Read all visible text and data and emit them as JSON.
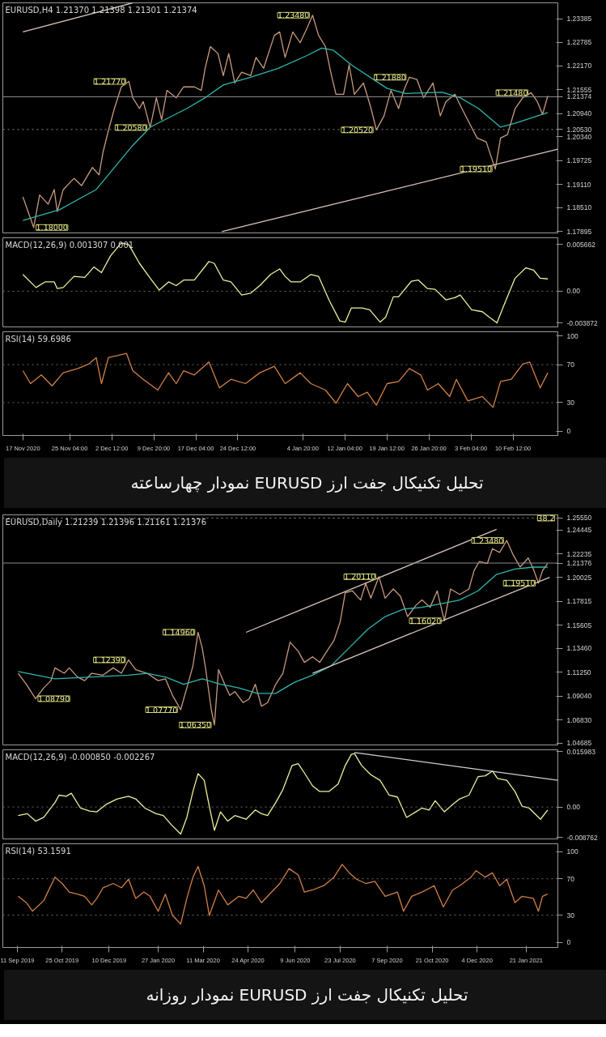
{
  "chart_data": [
    {
      "type": "line",
      "title": "EURUSD,H4  1.21370 1.21398 1.21301 1.21374",
      "tick_labels": "y",
      "xlim": [
        "2020-11-13T12:00",
        "2021-02-18T08:00"
      ],
      "ylim": [
        1.1786,
        1.238
      ],
      "yticks": [
        {
          "value": 1.17895,
          "label": "1.17895"
        },
        {
          "value": 1.1851,
          "label": "1.18510"
        },
        {
          "value": 1.1911,
          "label": "1.19110"
        },
        {
          "value": 1.19725,
          "label": "1.19725"
        },
        {
          "value": 1.2034,
          "label": "1.20340"
        },
        {
          "value": 1.2053,
          "label": "1.20530"
        },
        {
          "value": 1.2094,
          "label": "1.20940"
        },
        {
          "value": 1.21374,
          "label": "1.21374"
        },
        {
          "value": 1.21555,
          "label": "1.21555"
        },
        {
          "value": 1.2217,
          "label": "1.22170"
        },
        {
          "value": 1.22785,
          "label": "1.22785"
        },
        {
          "value": 1.23385,
          "label": "1.23385"
        }
      ],
      "series": [
        {
          "color": "#c79a7e",
          "x": [
            "2020-11-17T00:00",
            "2020-11-18T21:00",
            "2020-11-19T22:00",
            "2020-11-21T10:00",
            "2020-11-22T11:00",
            "2020-11-23T00:00",
            "2020-11-24T01:00",
            "2020-11-25T22:00",
            "2020-11-27T06:00",
            "2020-11-29T03:00",
            "2020-11-30T07:00",
            "2020-11-30T23:00",
            "2020-12-01T22:00",
            "2020-12-02T23:00",
            "2020-12-04T04:00",
            "2020-12-05T12:00",
            "2020-12-06T04:00",
            "2020-12-07T08:00",
            "2020-12-08T00:00",
            "2020-12-09T05:00",
            "2020-12-10T07:00",
            "2020-12-11T05:00",
            "2020-12-12T03:00",
            "2020-12-13T18:00",
            "2020-12-15T01:00",
            "2020-12-16T22:00",
            "2020-12-18T03:00",
            "2020-12-18T19:00",
            "2020-12-19T17:00",
            "2020-12-21T01:00",
            "2020-12-21T23:00",
            "2020-12-22T22:00",
            "2020-12-23T23:00",
            "2020-12-25T04:00",
            "2020-12-26T18:00",
            "2020-12-27T16:00",
            "2020-12-29T00:00",
            "2020-12-30T21:00",
            "2020-12-31T19:00",
            "2021-01-01T18:00",
            "2021-01-03T02:00",
            "2021-01-04T09:00",
            "2021-01-05T14:00",
            "2021-01-06T13:00",
            "2021-01-07T14:00",
            "2021-01-08T19:00",
            "2021-01-09T17:00",
            "2021-01-10T15:00",
            "2021-01-11T23:00",
            "2021-01-12T22:00",
            "2021-01-13T20:00",
            "2021-01-15T10:00",
            "2021-01-16T18:00",
            "2021-01-17T16:00",
            "2021-01-19T00:00",
            "2021-01-20T05:00",
            "2021-01-21T13:00",
            "2021-01-22T11:00",
            "2021-01-23T10:00",
            "2021-01-24T18:00",
            "2021-01-25T22:00",
            "2021-01-27T13:00",
            "2021-01-28T20:00",
            "2021-01-29T19:00",
            "2021-01-31T09:00",
            "2021-02-01T07:00",
            "2021-02-02T22:00",
            "2021-02-04T06:00",
            "2021-02-05T20:00",
            "2021-02-07T10:00",
            "2021-02-08T08:00",
            "2021-02-09T13:00",
            "2021-02-10T21:00",
            "2021-02-12T05:00",
            "2021-02-13T16:00",
            "2021-02-14T18:00",
            "2021-02-15T16:00",
            "2021-02-16T14:00"
          ],
          "values": [
            1.1879,
            1.18,
            1.1884,
            1.186,
            1.1898,
            1.1841,
            1.1898,
            1.1927,
            1.1908,
            1.1955,
            1.1936,
            1.1993,
            1.205,
            1.2107,
            1.2163,
            1.2177,
            1.2135,
            1.2107,
            1.2125,
            1.2058,
            1.2135,
            1.2078,
            1.2154,
            1.2135,
            1.2163,
            1.2163,
            1.2154,
            1.2211,
            1.2267,
            1.2249,
            1.2192,
            1.2249,
            1.2173,
            1.2201,
            1.2192,
            1.2239,
            1.2211,
            1.2296,
            1.2305,
            1.2239,
            1.2305,
            1.2277,
            1.2315,
            1.2348,
            1.2296,
            1.2267,
            1.2201,
            1.2144,
            1.2144,
            1.222,
            1.2144,
            1.2173,
            1.2107,
            1.2052,
            1.2088,
            1.2154,
            1.2107,
            1.2154,
            1.2188,
            1.2182,
            1.2135,
            1.2173,
            1.2088,
            1.2125,
            1.2144,
            1.2116,
            1.2069,
            1.2031,
            1.2021,
            1.1951,
            1.2031,
            1.204,
            1.2107,
            1.2135,
            1.2148,
            1.2125,
            1.2092,
            1.214
          ]
        },
        {
          "color": "#2fb5ad",
          "x": [
            "2020-11-17T00:00",
            "2020-11-23T09:00",
            "2020-11-29T19:00",
            "2020-12-06T04:00",
            "2020-12-09T05:00",
            "2020-12-15T14:00",
            "2020-12-18T19:00",
            "2020-12-21T23:00",
            "2020-12-26T12:00",
            "2020-12-31T13:00",
            "2021-01-05T14:00",
            "2021-01-08T03:00",
            "2021-01-10T03:00",
            "2021-01-13T07:00",
            "2021-01-19T13:00",
            "2021-01-22T18:00",
            "2021-01-29T03:00",
            "2021-02-01T07:00",
            "2021-02-04T12:00",
            "2021-02-08T08:00",
            "2021-02-10T21:00",
            "2021-02-16T14:00"
          ],
          "values": [
            1.1818,
            1.1846,
            1.1898,
            1.2012,
            1.2059,
            1.2107,
            1.2135,
            1.2168,
            1.2187,
            1.2211,
            1.2244,
            1.2263,
            1.2258,
            1.222,
            1.2159,
            1.2146,
            1.2149,
            1.2135,
            1.2107,
            1.2059,
            1.2069,
            1.2097
          ]
        },
        {
          "color": "#d9c3b9",
          "x": [
            "2020-11-17T00:00",
            "2020-12-06T04:00"
          ],
          "values": [
            1.2305,
            1.238
          ]
        },
        {
          "color": "#d9c3b9",
          "x": [
            "2020-12-21T17:00",
            "2021-02-18T08:00"
          ],
          "values": [
            1.17895,
            1.2002
          ]
        }
      ],
      "ref_lines": [
        {
          "axis": "y",
          "value": 1.21374,
          "color": "#8a8a8a",
          "line_style": "solid"
        },
        {
          "axis": "y",
          "value": 1.2053,
          "color": "#8a8a8a",
          "line_style": "dotted"
        }
      ],
      "annotations": [
        {
          "text": "1.23480",
          "x": "2021-01-06T13:00",
          "y": 1.2348
        },
        {
          "text": "1.21770",
          "x": "2020-12-05T12:00",
          "y": 1.2177
        },
        {
          "text": "1.20580",
          "x": "2020-12-09T05:00",
          "y": 1.2058
        },
        {
          "text": "1.20520",
          "x": "2021-01-17T16:00",
          "y": 1.2052
        },
        {
          "text": "1.21880",
          "x": "2021-01-23T10:00",
          "y": 1.2188
        },
        {
          "text": "1.19510",
          "x": "2021-02-07T10:00",
          "y": 1.1951
        },
        {
          "text": "1.21480",
          "x": "2021-02-13T16:00",
          "y": 1.2148
        },
        {
          "text": "1.18000",
          "x": "2020-11-18T21:00",
          "y": 1.18
        }
      ]
    },
    {
      "type": "line",
      "title": "MACD(12,26,9) 0.001307 0.001",
      "tick_labels": "y",
      "xlim": [
        "2020-11-13T12:00",
        "2021-02-18T08:00"
      ],
      "ylim": [
        -0.00432,
        0.00647
      ],
      "yticks": [
        {
          "value": -0.003872,
          "label": "-0.003872"
        },
        {
          "value": 0,
          "label": "0.00"
        },
        {
          "value": 0.005662,
          "label": "0.005662"
        }
      ],
      "series": [
        {
          "color": "#f0ef9c",
          "x": [
            "2020-11-17T00:00",
            "2020-11-19T07:00",
            "2020-11-20T21:00",
            "2020-11-22T11:00",
            "2020-11-23T00:00",
            "2020-11-24T01:00",
            "2020-11-25T22:00",
            "2020-11-27T19:00",
            "2020-11-29T09:00",
            "2020-11-30T17:00",
            "2020-12-02T07:00",
            "2020-12-04T04:00",
            "2020-12-05T12:00",
            "2020-12-07T08:00",
            "2020-12-09T05:00",
            "2020-12-10T19:00",
            "2020-12-12T10:00",
            "2020-12-13T18:00",
            "2020-12-15T01:00",
            "2020-12-16T22:00",
            "2020-12-19T11:00",
            "2020-12-20T09:00",
            "2020-12-21T23:00",
            "2020-12-23T07:00",
            "2020-12-25T04:00",
            "2020-12-26T18:00",
            "2020-12-28T08:00",
            "2020-12-30T05:00",
            "2020-12-31T19:00",
            "2021-01-01T18:00",
            "2021-01-02T19:00",
            "2021-01-04T09:00",
            "2021-01-06T06:00",
            "2021-01-07T14:00",
            "2021-01-09T11:00",
            "2021-01-11T07:00",
            "2021-01-12T06:00",
            "2021-01-13T07:00",
            "2021-01-15T04:00",
            "2021-01-16T12:00",
            "2021-01-18T08:00",
            "2021-01-19T07:00",
            "2021-01-20T15:00",
            "2021-01-21T13:00",
            "2021-01-23T19:00",
            "2021-01-25T00:00",
            "2021-01-26T14:00",
            "2021-01-27T22:00",
            "2021-01-29T19:00",
            "2021-01-31T09:00",
            "2021-02-01T07:00",
            "2021-02-03T07:00",
            "2021-02-05T04:00",
            "2021-02-06T09:00",
            "2021-02-07T17:00",
            "2021-02-09T00:00",
            "2021-02-10T21:00",
            "2021-02-12T18:00",
            "2021-02-14T02:00",
            "2021-02-15T06:00",
            "2021-02-16T14:00"
          ],
          "values": [
            0.00203,
            0.00045,
            0.00113,
            0.00113,
            0.00032,
            0.00045,
            0.0018,
            0.00167,
            0.00293,
            0.00225,
            0.00428,
            0.00585,
            0.00563,
            0.00338,
            0.00158,
            0.00014,
            0.00113,
            0.00068,
            0.00135,
            0.00135,
            0.0036,
            0.00338,
            0.00135,
            0.00113,
            -0.00045,
            -0.00023,
            0.00068,
            0.00203,
            0.0027,
            0.0018,
            0.00113,
            0.00113,
            0.00203,
            0.0018,
            -0.00113,
            -0.0036,
            -0.00374,
            -0.00203,
            -0.00203,
            -0.00225,
            -0.00374,
            -0.00315,
            -0.00068,
            -0.00068,
            0.00122,
            0.00135,
            0.00032,
            0.00023,
            -0.00104,
            -0.00077,
            -0.00045,
            -0.00225,
            -0.00248,
            -0.00315,
            -0.00383,
            -0.00158,
            0.00158,
            0.00284,
            0.00257,
            0.00158,
            0.00149
          ]
        }
      ],
      "ref_lines": [
        {
          "axis": "y",
          "value": 0,
          "color": "#6a6a6a",
          "line_style": "dotted"
        }
      ]
    },
    {
      "type": "line",
      "title": "RSI(14) 59.6986",
      "xlim": [
        "2020-11-13T12:00",
        "2021-02-18T08:00"
      ],
      "ylim": [
        -4.5,
        104.5
      ],
      "yticks": [
        0,
        30,
        70,
        100
      ],
      "xticks": [
        {
          "value": "2020-11-17T00:00",
          "label": "17 Nov 2020"
        },
        {
          "value": "2020-11-25T04:00",
          "label": "25 Nov 04:00"
        },
        {
          "value": "2020-12-02T12:00",
          "label": "2 Dec 12:00"
        },
        {
          "value": "2020-12-09T20:00",
          "label": "9 Dec 20:00"
        },
        {
          "value": "2020-12-17T04:00",
          "label": "17 Dec 04:00"
        },
        {
          "value": "2020-12-24T12:00",
          "label": "24 Dec 12:00"
        },
        {
          "value": "2021-01-04T20:00",
          "label": "4 Jan 20:00"
        },
        {
          "value": "2021-01-12T04:00",
          "label": "12 Jan 04:00"
        },
        {
          "value": "2021-01-19T12:00",
          "label": "19 Jan 12:00"
        },
        {
          "value": "2021-01-26T20:00",
          "label": "26 Jan 20:00"
        },
        {
          "value": "2021-02-03T04:00",
          "label": "3 Feb 04:00"
        },
        {
          "value": "2021-02-10T12:00",
          "label": "10 Feb 12:00"
        }
      ],
      "series": [
        {
          "color": "#d08045",
          "x": [
            "2020-11-17T00:00",
            "2020-11-18T08:00",
            "2020-11-20T05:00",
            "2020-11-22T02:00",
            "2020-11-24T01:00",
            "2020-11-26T14:00",
            "2020-11-28T11:00",
            "2020-11-29T19:00",
            "2020-11-30T17:00",
            "2020-12-01T22:00",
            "2020-12-03T12:00",
            "2020-12-05T02:00",
            "2020-12-06T04:00",
            "2020-12-08T00:00",
            "2020-12-10T13:00",
            "2020-12-12T10:00",
            "2020-12-13T18:00",
            "2020-12-15T01:00",
            "2020-12-16T22:00",
            "2020-12-19T11:00",
            "2020-12-21T07:00",
            "2020-12-23T07:00",
            "2020-12-25T20:00",
            "2020-12-28T08:00",
            "2020-12-30T21:00",
            "2021-01-01T18:00",
            "2021-01-04T09:00",
            "2021-01-06T06:00",
            "2021-01-08T19:00",
            "2021-01-10T15:00",
            "2021-01-12T15:00",
            "2021-01-14T12:00",
            "2021-01-16T02:00",
            "2021-01-17T16:00",
            "2021-01-19T13:00",
            "2021-01-21T13:00",
            "2021-01-23T10:00",
            "2021-01-25T10:00",
            "2021-01-26T14:00",
            "2021-01-28T11:00",
            "2021-01-30T11:00",
            "2021-01-31T15:00",
            "2021-02-02T15:00",
            "2021-02-05T04:00",
            "2021-02-07T01:00",
            "2021-02-08T08:00",
            "2021-02-10T05:00",
            "2021-02-12T05:00",
            "2021-02-13T10:00",
            "2021-02-15T06:00",
            "2021-02-16T14:00"
          ],
          "values": [
            63.6,
            50.0,
            59.1,
            47.7,
            61.4,
            65.9,
            70.5,
            77.3,
            50.0,
            77.3,
            79.5,
            81.8,
            63.6,
            54.5,
            43.2,
            61.4,
            50.0,
            63.6,
            59.1,
            72.7,
            45.5,
            54.5,
            50.0,
            61.4,
            68.2,
            50.0,
            61.4,
            50.0,
            43.2,
            29.5,
            50.0,
            36.4,
            40.9,
            27.3,
            50.0,
            52.3,
            65.9,
            59.1,
            43.2,
            50.0,
            36.4,
            54.5,
            31.8,
            36.4,
            25.0,
            52.3,
            54.5,
            70.5,
            72.7,
            45.5,
            61.4
          ]
        }
      ],
      "ref_lines": [
        {
          "axis": "y",
          "value": 30,
          "color": "#6a6a6a",
          "line_style": "dotted"
        },
        {
          "axis": "y",
          "value": 70,
          "color": "#6a6a6a",
          "line_style": "dotted"
        }
      ],
      "annotations": [
        "تحلیل تکنیکال جفت ارز EURUSD نمودار چهارساعته"
      ]
    },
    {
      "type": "line",
      "title": "EURUSD,Daily  1.21239 1.21396 1.21161 1.21376",
      "tick_labels": "y",
      "xlim": [
        "2019-08-28",
        "2021-02-21"
      ],
      "ylim": [
        1.045,
        1.2585
      ],
      "yticks": [
        {
          "value": 1.04685,
          "label": "1.04685"
        },
        {
          "value": 1.0683,
          "label": "1.06830"
        },
        {
          "value": 1.0904,
          "label": "1.09040"
        },
        {
          "value": 1.1125,
          "label": "1.11250"
        },
        {
          "value": 1.1346,
          "label": "1.13460"
        },
        {
          "value": 1.15605,
          "label": "1.15605"
        },
        {
          "value": 1.17815,
          "label": "1.17815"
        },
        {
          "value": 1.20025,
          "label": "1.20025"
        },
        {
          "value": 1.21376,
          "label": "1.21376"
        },
        {
          "value": 1.22235,
          "label": "1.22235"
        },
        {
          "value": 1.24445,
          "label": "1.24445"
        },
        {
          "value": 1.2555,
          "label": "1.25550"
        }
      ],
      "series": [
        {
          "color": "#c79a7e",
          "x": [
            "2019-09-12",
            "2019-09-20",
            "2019-09-29",
            "2019-10-07",
            "2019-10-14",
            "2019-10-18",
            "2019-10-27",
            "2019-11-01",
            "2019-11-09",
            "2019-11-16",
            "2019-11-23",
            "2019-12-04",
            "2019-12-14",
            "2019-12-22",
            "2019-12-29",
            "2020-01-05",
            "2020-01-16",
            "2020-01-27",
            "2020-02-03",
            "2020-02-10",
            "2020-02-18",
            "2020-02-24",
            "2020-03-01",
            "2020-03-06",
            "2020-03-10",
            "2020-03-13",
            "2020-03-19",
            "2020-03-22",
            "2020-03-26",
            "2020-04-01",
            "2020-04-06",
            "2020-04-11",
            "2020-04-19",
            "2020-04-25",
            "2020-05-01",
            "2020-05-07",
            "2020-05-13",
            "2020-05-21",
            "2020-05-28",
            "2020-06-04",
            "2020-06-12",
            "2020-06-18",
            "2020-06-26",
            "2020-07-03",
            "2020-07-10",
            "2020-07-17",
            "2020-07-23",
            "2020-07-28",
            "2020-08-04",
            "2020-08-12",
            "2020-08-17",
            "2020-08-22",
            "2020-08-30",
            "2020-09-05",
            "2020-09-13",
            "2020-09-20",
            "2020-09-27",
            "2020-10-05",
            "2020-10-11",
            "2020-10-19",
            "2020-10-26",
            "2020-11-02",
            "2020-11-08",
            "2020-11-17",
            "2020-11-26",
            "2020-12-01",
            "2020-12-06",
            "2020-12-14",
            "2020-12-19",
            "2020-12-26",
            "2021-01-02",
            "2021-01-08",
            "2021-01-15",
            "2021-01-23",
            "2021-01-28",
            "2021-02-02",
            "2021-02-06",
            "2021-02-11"
          ],
          "values": [
            1.1115,
            1.1013,
            1.0879,
            1.0979,
            1.1047,
            1.1165,
            1.1115,
            1.1165,
            1.1081,
            1.1047,
            1.1115,
            1.1098,
            1.1165,
            1.1115,
            1.1239,
            1.1149,
            1.1115,
            1.1047,
            1.1064,
            1.091,
            1.0777,
            1.0979,
            1.1183,
            1.1496,
            1.1353,
            1.1183,
            1.0775,
            1.0635,
            1.1149,
            1.1013,
            1.091,
            1.0945,
            1.0843,
            1.0877,
            1.1013,
            1.0809,
            1.0843,
            1.1013,
            1.1115,
            1.1404,
            1.1319,
            1.1216,
            1.1268,
            1.1216,
            1.1319,
            1.1421,
            1.1591,
            1.1863,
            1.188,
            1.1795,
            1.1948,
            1.1812,
            1.2011,
            1.1812,
            1.1897,
            1.1829,
            1.1641,
            1.1744,
            1.1795,
            1.1727,
            1.188,
            1.1602,
            1.1897,
            1.1846,
            1.1897,
            1.2067,
            1.2151,
            1.2134,
            1.2271,
            1.2236,
            1.2348,
            1.2219,
            1.21,
            1.2185,
            1.2083,
            1.1951,
            1.2067,
            1.2134
          ]
        },
        {
          "color": "#2fb5ad",
          "x": [
            "2019-09-12",
            "2019-10-18",
            "2019-11-23",
            "2019-12-29",
            "2020-01-16",
            "2020-02-03",
            "2020-02-21",
            "2020-03-10",
            "2020-03-28",
            "2020-04-15",
            "2020-05-03",
            "2020-05-21",
            "2020-06-08",
            "2020-06-26",
            "2020-07-14",
            "2020-08-01",
            "2020-08-19",
            "2020-09-05",
            "2020-09-23",
            "2020-10-11",
            "2020-10-30",
            "2020-11-17",
            "2020-12-05",
            "2020-12-23",
            "2021-01-10",
            "2021-01-28",
            "2021-02-11"
          ],
          "values": [
            1.1131,
            1.1064,
            1.1081,
            1.1098,
            1.1115,
            1.1081,
            1.1013,
            1.1064,
            1.1013,
            1.0979,
            1.0928,
            1.0928,
            1.103,
            1.1098,
            1.1183,
            1.1353,
            1.1523,
            1.1641,
            1.171,
            1.1727,
            1.1761,
            1.1795,
            1.188,
            1.2032,
            1.2083,
            1.21,
            1.21
          ]
        },
        {
          "color": "#d9c3b9",
          "x": [
            "2020-04-22",
            "2020-12-23"
          ],
          "values": [
            1.1495,
            1.2451
          ]
        },
        {
          "color": "#d9c3b9",
          "x": [
            "2020-06-26",
            "2021-02-13"
          ],
          "values": [
            1.1115,
            1.2005
          ]
        }
      ],
      "ref_lines": [
        {
          "axis": "y",
          "value": 1.21376,
          "color": "#8a8a8a",
          "line_style": "solid"
        },
        {
          "axis": "y",
          "value": 1.2555,
          "color": "#8a8a8a",
          "line_style": "dotted"
        }
      ],
      "annotations": [
        {
          "text": "1.23480",
          "x": "2021-01-02",
          "y": 1.2348
        },
        {
          "text": "1.20110",
          "x": "2020-08-30",
          "y": 1.2011
        },
        {
          "text": "1.16020",
          "x": "2020-11-02",
          "y": 1.1602
        },
        {
          "text": "1.19510",
          "x": "2021-02-02",
          "y": 1.1951
        },
        {
          "text": "1.14960",
          "x": "2020-03-06",
          "y": 1.1496
        },
        {
          "text": "1.12390",
          "x": "2019-12-29",
          "y": 1.1239
        },
        {
          "text": "1.07770",
          "x": "2020-02-18",
          "y": 1.0777
        },
        {
          "text": "1.06350",
          "x": "2020-03-22",
          "y": 1.0635
        },
        {
          "text": "1.08790",
          "x": "2019-09-29",
          "y": 1.0879
        },
        {
          "text": "38.2",
          "x": "2021-02-21",
          "y": 1.2555
        }
      ]
    },
    {
      "type": "line",
      "title": "MACD(12,26,9) -0.000850 -0.002267",
      "tick_labels": "y",
      "xlim": [
        "2019-08-28",
        "2021-02-21"
      ],
      "ylim": [
        -0.0092,
        0.0165
      ],
      "yticks": [
        {
          "value": -0.008762,
          "label": "-0.008762"
        },
        {
          "value": 0,
          "label": "0.00"
        },
        {
          "value": 0.015983,
          "label": "0.015983"
        }
      ],
      "series": [
        {
          "color": "#f0ef9c",
          "x": [
            "2019-09-12",
            "2019-09-21",
            "2019-09-29",
            "2019-10-07",
            "2019-10-18",
            "2019-10-22",
            "2019-10-29",
            "2019-11-03",
            "2019-11-12",
            "2019-11-21",
            "2019-11-28",
            "2019-12-07",
            "2019-12-18",
            "2019-12-29",
            "2020-01-05",
            "2020-01-14",
            "2020-01-25",
            "2020-02-01",
            "2020-02-09",
            "2020-02-18",
            "2020-02-24",
            "2020-03-01",
            "2020-03-06",
            "2020-03-12",
            "2020-03-17",
            "2020-03-22",
            "2020-03-28",
            "2020-04-04",
            "2020-04-11",
            "2020-04-22",
            "2020-05-01",
            "2020-05-07",
            "2020-05-13",
            "2020-05-21",
            "2020-05-28",
            "2020-06-06",
            "2020-06-12",
            "2020-06-18",
            "2020-06-26",
            "2020-07-03",
            "2020-07-12",
            "2020-07-21",
            "2020-07-28",
            "2020-08-03",
            "2020-08-06",
            "2020-08-13",
            "2020-08-22",
            "2020-08-31",
            "2020-09-09",
            "2020-09-17",
            "2020-09-26",
            "2020-10-05",
            "2020-10-11",
            "2020-10-18",
            "2020-10-24",
            "2020-11-02",
            "2020-11-10",
            "2020-11-17",
            "2020-11-26",
            "2020-12-05",
            "2020-12-12",
            "2020-12-19",
            "2020-12-24",
            "2021-01-02",
            "2021-01-10",
            "2021-01-17",
            "2021-01-24",
            "2021-02-04",
            "2021-02-11"
          ],
          "values": [
            -0.00246,
            -0.00193,
            -0.00407,
            -0.003,
            0.00128,
            0.00342,
            0.0031,
            0.00396,
            -0.00032,
            -0.00118,
            -0.00139,
            0.00075,
            0.00235,
            0.0031,
            0.00235,
            -0.00032,
            -0.00193,
            -0.00246,
            -0.00514,
            -0.00781,
            -0.003,
            0.00449,
            0.00963,
            0.0077,
            0.00021,
            -0.00674,
            -0.00139,
            -0.00407,
            -0.00246,
            -0.00353,
            -0.00086,
            -0.00193,
            -0.00246,
            0.00128,
            0.00503,
            0.01198,
            0.01252,
            0.00984,
            0.0061,
            0.00449,
            0.00449,
            0.00663,
            0.01198,
            0.01519,
            0.01541,
            0.01198,
            0.00931,
            0.0077,
            0.00342,
            0.00289,
            -0.003,
            -0.00139,
            -0.00032,
            -0.00086,
            0.00182,
            -0.00139,
            0.00075,
            0.00235,
            0.00342,
            0.00877,
            0.00899,
            0.01038,
            0.00824,
            0.0077,
            0.00449,
            0.00021,
            -0.00032,
            -0.00353,
            -0.00086
          ]
        },
        {
          "color": "#cfcfcf",
          "x": [
            "2020-08-06",
            "2021-02-21"
          ],
          "values": [
            0.01573,
            0.0077
          ]
        }
      ],
      "ref_lines": [
        {
          "axis": "y",
          "value": 0,
          "color": "#6a6a6a",
          "line_style": "dotted"
        }
      ]
    },
    {
      "type": "line",
      "title": "RSI(14) 53.1591",
      "xlim": [
        "2019-08-28",
        "2021-02-21"
      ],
      "ylim": [
        -5.6,
        108.5
      ],
      "yticks": [
        0,
        30,
        70,
        100
      ],
      "xticks": [
        {
          "value": "2019-09-11",
          "label": "11 Sep 2019"
        },
        {
          "value": "2019-10-25",
          "label": "25 Oct 2019"
        },
        {
          "value": "2019-12-10",
          "label": "10 Dec 2019"
        },
        {
          "value": "2020-01-27",
          "label": "27 Jan 2020"
        },
        {
          "value": "2020-03-11",
          "label": "11 Mar 2020"
        },
        {
          "value": "2020-04-24",
          "label": "24 Apr 2020"
        },
        {
          "value": "2020-06-09",
          "label": "9 Jun 2020"
        },
        {
          "value": "2020-07-23",
          "label": "23 Jul 2020"
        },
        {
          "value": "2020-09-07",
          "label": "7 Sep 2020"
        },
        {
          "value": "2020-10-21",
          "label": "21 Oct 2020"
        },
        {
          "value": "2020-12-04",
          "label": "4 Dec 2020"
        },
        {
          "value": "2021-01-21",
          "label": "21 Jan 2021"
        }
      ],
      "series": [
        {
          "color": "#d08045",
          "x": [
            "2019-09-12",
            "2019-09-20",
            "2019-09-26",
            "2019-10-07",
            "2019-10-18",
            "2019-10-25",
            "2019-11-01",
            "2019-11-09",
            "2019-11-16",
            "2019-11-23",
            "2019-11-28",
            "2019-12-04",
            "2019-12-14",
            "2019-12-22",
            "2019-12-29",
            "2020-01-05",
            "2020-01-13",
            "2020-01-19",
            "2020-01-27",
            "2020-02-03",
            "2020-02-10",
            "2020-02-18",
            "2020-02-24",
            "2020-03-01",
            "2020-03-06",
            "2020-03-12",
            "2020-03-17",
            "2020-03-26",
            "2020-04-04",
            "2020-04-15",
            "2020-04-22",
            "2020-04-29",
            "2020-05-07",
            "2020-05-17",
            "2020-05-25",
            "2020-06-03",
            "2020-06-12",
            "2020-06-18",
            "2020-06-26",
            "2020-07-07",
            "2020-07-17",
            "2020-07-25",
            "2020-08-01",
            "2020-08-08",
            "2020-08-17",
            "2020-08-26",
            "2020-09-05",
            "2020-09-17",
            "2020-09-23",
            "2020-10-01",
            "2020-10-11",
            "2020-10-23",
            "2020-11-01",
            "2020-11-10",
            "2020-11-17",
            "2020-11-28",
            "2020-12-03",
            "2020-12-12",
            "2020-12-19",
            "2020-12-26",
            "2021-01-02",
            "2021-01-10",
            "2021-01-17",
            "2021-01-28",
            "2021-02-02",
            "2021-02-06",
            "2021-02-11"
          ],
          "values": [
            50.7,
            43.7,
            34.3,
            46.0,
            71.8,
            64.8,
            55.4,
            53.1,
            50.7,
            41.3,
            48.4,
            60.1,
            64.8,
            60.1,
            69.5,
            48.4,
            55.4,
            50.7,
            34.3,
            53.1,
            29.6,
            20.2,
            48.4,
            71.8,
            83.6,
            62.4,
            29.6,
            57.7,
            41.3,
            50.7,
            48.4,
            57.7,
            43.7,
            55.4,
            64.8,
            81.2,
            74.2,
            55.4,
            57.7,
            62.4,
            71.8,
            85.9,
            76.5,
            69.5,
            64.8,
            67.1,
            50.7,
            55.4,
            34.3,
            50.7,
            55.4,
            62.4,
            39.0,
            57.7,
            62.4,
            71.8,
            78.9,
            71.8,
            76.5,
            62.4,
            69.5,
            43.7,
            50.7,
            48.4,
            34.3,
            50.7,
            53.1
          ]
        }
      ],
      "ref_lines": [
        {
          "axis": "y",
          "value": 30,
          "color": "#6a6a6a",
          "line_style": "dotted"
        },
        {
          "axis": "y",
          "value": 70,
          "color": "#6a6a6a",
          "line_style": "dotted"
        }
      ],
      "annotations": [
        "تحلیل تکنیکال جفت ارز EURUSD نمودار روزانه"
      ]
    }
  ]
}
